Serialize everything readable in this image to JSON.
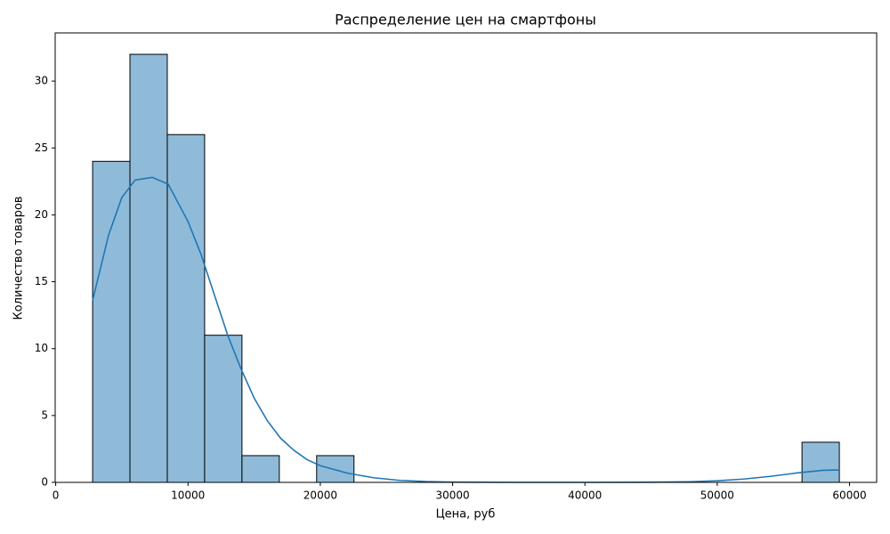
{
  "chart_data": {
    "type": "histogram",
    "title": "Распределение цен на смартфоны",
    "x_label": "Цена, руб",
    "y_label": "Количество товаров",
    "bins": [
      2790,
      5612,
      8434,
      11256,
      14078,
      16900,
      19722,
      22544,
      25366,
      28188,
      31010,
      33832,
      36654,
      39476,
      42298,
      45120,
      47942,
      50764,
      53586,
      56408,
      59230
    ],
    "values": [
      24,
      32,
      26,
      11,
      2,
      0,
      2,
      0,
      0,
      0,
      0,
      0,
      0,
      0,
      0,
      0,
      0,
      0,
      0,
      3
    ],
    "color": "#8fbbd9",
    "edge_color": "#000000",
    "kde": {
      "color": "#1f77b4",
      "x": [
        2790,
        4000,
        5000,
        6000,
        7300,
        8500,
        10000,
        11000,
        12000,
        13000,
        14000,
        15000,
        16000,
        17000,
        18000,
        19000,
        20000,
        22000,
        24000,
        26000,
        28000,
        30000,
        35000,
        40000,
        45000,
        48000,
        50000,
        52000,
        54000,
        56000,
        58000,
        59230
      ],
      "values": [
        13.6,
        18.5,
        21.3,
        22.6,
        22.8,
        22.3,
        19.5,
        17,
        14,
        11,
        8.5,
        6.3,
        4.6,
        3.3,
        2.4,
        1.7,
        1.25,
        0.7,
        0.35,
        0.15,
        0.06,
        0.02,
        0,
        0,
        0.01,
        0.05,
        0.12,
        0.25,
        0.45,
        0.7,
        0.9,
        0.93
      ]
    },
    "xlim": [
      -40,
      62050
    ],
    "ylim": [
      0,
      33.6
    ],
    "xticks": [
      0,
      10000,
      20000,
      30000,
      40000,
      50000,
      60000
    ],
    "yticks": [
      0,
      5,
      10,
      15,
      20,
      25,
      30
    ],
    "grid": false
  }
}
